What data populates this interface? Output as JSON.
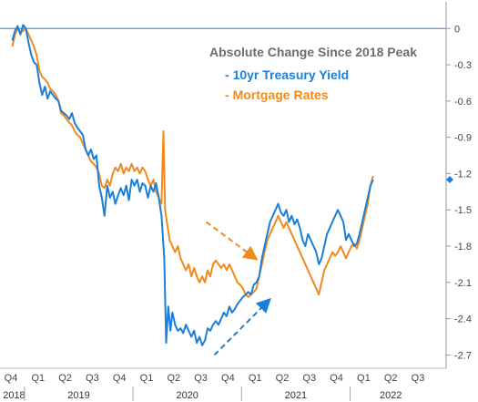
{
  "chart_data": {
    "type": "line",
    "title": "",
    "legend_title": "Absolute Change Since 2018 Peak",
    "legend_placement": "top-right",
    "xlabel": "",
    "ylabel": "",
    "ylim": [
      -2.75,
      0.1
    ],
    "y_ticks": [
      0,
      -0.3,
      -0.6,
      -0.9,
      -1.2,
      -1.5,
      -1.8,
      -2.1,
      -2.4,
      -2.7
    ],
    "y_tick_labels": [
      "0",
      "-0.3",
      "-0.6",
      "-0.9",
      "-1.2",
      "-1.5",
      "-1.8",
      "-2.1",
      "-2.4",
      "-2.7"
    ],
    "x_quarter_labels": [
      "Q4",
      "Q1",
      "Q2",
      "Q3",
      "Q4",
      "Q1",
      "Q2",
      "Q3",
      "Q4",
      "Q1",
      "Q2",
      "Q3",
      "Q4",
      "Q1",
      "Q2",
      "Q3"
    ],
    "x_quarter_index": [
      0,
      1,
      2,
      3,
      4,
      5,
      6,
      7,
      8,
      9,
      10,
      11,
      12,
      13,
      14,
      15
    ],
    "x_years": [
      {
        "label": "2018",
        "from": 0,
        "to": 1
      },
      {
        "label": "2019",
        "from": 1,
        "to": 5
      },
      {
        "label": "2020",
        "from": 5,
        "to": 9
      },
      {
        "label": "2021",
        "from": 9,
        "to": 13
      },
      {
        "label": "2022",
        "from": 13,
        "to": 16
      }
    ],
    "x_range": [
      0,
      15.7
    ],
    "zero_line": 0,
    "series": [
      {
        "name": "10yr Treasury Yield",
        "color": "#1a7fd9",
        "points": [
          [
            0.05,
            -0.1
          ],
          [
            0.15,
            -0.02
          ],
          [
            0.25,
            0.02
          ],
          [
            0.35,
            -0.05
          ],
          [
            0.45,
            0.03
          ],
          [
            0.55,
            0.0
          ],
          [
            0.65,
            -0.12
          ],
          [
            0.75,
            -0.22
          ],
          [
            0.85,
            -0.28
          ],
          [
            0.95,
            -0.3
          ],
          [
            1.05,
            -0.45
          ],
          [
            1.15,
            -0.55
          ],
          [
            1.25,
            -0.48
          ],
          [
            1.35,
            -0.58
          ],
          [
            1.45,
            -0.52
          ],
          [
            1.55,
            -0.55
          ],
          [
            1.65,
            -0.58
          ],
          [
            1.75,
            -0.6
          ],
          [
            1.85,
            -0.68
          ],
          [
            1.95,
            -0.7
          ],
          [
            2.05,
            -0.72
          ],
          [
            2.15,
            -0.75
          ],
          [
            2.25,
            -0.7
          ],
          [
            2.35,
            -0.78
          ],
          [
            2.45,
            -0.82
          ],
          [
            2.55,
            -0.85
          ],
          [
            2.65,
            -0.88
          ],
          [
            2.75,
            -1.0
          ],
          [
            2.85,
            -1.05
          ],
          [
            2.95,
            -1.0
          ],
          [
            3.05,
            -1.08
          ],
          [
            3.15,
            -1.05
          ],
          [
            3.25,
            -1.3
          ],
          [
            3.35,
            -1.4
          ],
          [
            3.45,
            -1.55
          ],
          [
            3.55,
            -1.3
          ],
          [
            3.65,
            -1.4
          ],
          [
            3.75,
            -1.35
          ],
          [
            3.85,
            -1.45
          ],
          [
            3.95,
            -1.38
          ],
          [
            4.05,
            -1.32
          ],
          [
            4.15,
            -1.38
          ],
          [
            4.25,
            -1.3
          ],
          [
            4.35,
            -1.42
          ],
          [
            4.45,
            -1.25
          ],
          [
            4.55,
            -1.3
          ],
          [
            4.65,
            -1.25
          ],
          [
            4.75,
            -1.35
          ],
          [
            4.85,
            -1.28
          ],
          [
            4.95,
            -1.3
          ],
          [
            5.05,
            -1.4
          ],
          [
            5.15,
            -1.3
          ],
          [
            5.25,
            -1.35
          ],
          [
            5.35,
            -1.28
          ],
          [
            5.45,
            -1.4
          ],
          [
            5.55,
            -1.55
          ],
          [
            5.65,
            -1.9
          ],
          [
            5.72,
            -2.6
          ],
          [
            5.8,
            -2.3
          ],
          [
            5.88,
            -2.5
          ],
          [
            5.95,
            -2.35
          ],
          [
            6.05,
            -2.45
          ],
          [
            6.15,
            -2.5
          ],
          [
            6.25,
            -2.48
          ],
          [
            6.35,
            -2.52
          ],
          [
            6.45,
            -2.45
          ],
          [
            6.55,
            -2.5
          ],
          [
            6.65,
            -2.55
          ],
          [
            6.75,
            -2.5
          ],
          [
            6.85,
            -2.6
          ],
          [
            6.95,
            -2.55
          ],
          [
            7.05,
            -2.62
          ],
          [
            7.15,
            -2.58
          ],
          [
            7.25,
            -2.48
          ],
          [
            7.35,
            -2.5
          ],
          [
            7.45,
            -2.45
          ],
          [
            7.55,
            -2.42
          ],
          [
            7.65,
            -2.45
          ],
          [
            7.75,
            -2.4
          ],
          [
            7.85,
            -2.35
          ],
          [
            7.95,
            -2.38
          ],
          [
            8.05,
            -2.3
          ],
          [
            8.15,
            -2.35
          ],
          [
            8.25,
            -2.32
          ],
          [
            8.35,
            -2.28
          ],
          [
            8.45,
            -2.25
          ],
          [
            8.55,
            -2.22
          ],
          [
            8.65,
            -2.2
          ],
          [
            8.75,
            -2.18
          ],
          [
            8.85,
            -2.2
          ],
          [
            8.95,
            -2.12
          ],
          [
            9.05,
            -2.1
          ],
          [
            9.15,
            -2.05
          ],
          [
            9.25,
            -1.9
          ],
          [
            9.35,
            -1.8
          ],
          [
            9.45,
            -1.7
          ],
          [
            9.55,
            -1.6
          ],
          [
            9.65,
            -1.55
          ],
          [
            9.75,
            -1.5
          ],
          [
            9.85,
            -1.45
          ],
          [
            9.95,
            -1.52
          ],
          [
            10.05,
            -1.55
          ],
          [
            10.15,
            -1.5
          ],
          [
            10.25,
            -1.6
          ],
          [
            10.35,
            -1.55
          ],
          [
            10.45,
            -1.62
          ],
          [
            10.55,
            -1.58
          ],
          [
            10.65,
            -1.65
          ],
          [
            10.75,
            -1.75
          ],
          [
            10.85,
            -1.8
          ],
          [
            10.95,
            -1.7
          ],
          [
            11.05,
            -1.75
          ],
          [
            11.15,
            -1.8
          ],
          [
            11.25,
            -1.85
          ],
          [
            11.35,
            -1.95
          ],
          [
            11.45,
            -1.9
          ],
          [
            11.55,
            -1.8
          ],
          [
            11.65,
            -1.7
          ],
          [
            11.75,
            -1.65
          ],
          [
            11.85,
            -1.6
          ],
          [
            11.95,
            -1.55
          ],
          [
            12.05,
            -1.5
          ],
          [
            12.15,
            -1.55
          ],
          [
            12.25,
            -1.6
          ],
          [
            12.35,
            -1.75
          ],
          [
            12.45,
            -1.7
          ],
          [
            12.55,
            -1.75
          ],
          [
            12.65,
            -1.8
          ],
          [
            12.75,
            -1.78
          ],
          [
            12.85,
            -1.7
          ],
          [
            12.95,
            -1.6
          ],
          [
            13.05,
            -1.5
          ],
          [
            13.15,
            -1.4
          ],
          [
            13.25,
            -1.3
          ],
          [
            13.35,
            -1.25
          ]
        ]
      },
      {
        "name": "Mortgage Rates",
        "color": "#f08a1d",
        "points": [
          [
            0.05,
            -0.15
          ],
          [
            0.15,
            -0.05
          ],
          [
            0.25,
            0.0
          ],
          [
            0.35,
            -0.03
          ],
          [
            0.45,
            -0.02
          ],
          [
            0.55,
            0.0
          ],
          [
            0.65,
            -0.05
          ],
          [
            0.75,
            -0.1
          ],
          [
            0.85,
            -0.15
          ],
          [
            0.95,
            -0.22
          ],
          [
            1.05,
            -0.35
          ],
          [
            1.15,
            -0.4
          ],
          [
            1.25,
            -0.42
          ],
          [
            1.35,
            -0.45
          ],
          [
            1.45,
            -0.5
          ],
          [
            1.55,
            -0.52
          ],
          [
            1.65,
            -0.55
          ],
          [
            1.75,
            -0.6
          ],
          [
            1.85,
            -0.7
          ],
          [
            1.95,
            -0.72
          ],
          [
            2.05,
            -0.75
          ],
          [
            2.15,
            -0.78
          ],
          [
            2.25,
            -0.8
          ],
          [
            2.35,
            -0.85
          ],
          [
            2.45,
            -0.88
          ],
          [
            2.55,
            -0.9
          ],
          [
            2.65,
            -0.95
          ],
          [
            2.75,
            -1.0
          ],
          [
            2.85,
            -1.05
          ],
          [
            2.95,
            -1.1
          ],
          [
            3.05,
            -1.12
          ],
          [
            3.15,
            -1.15
          ],
          [
            3.25,
            -1.2
          ],
          [
            3.35,
            -1.3
          ],
          [
            3.45,
            -1.32
          ],
          [
            3.55,
            -1.25
          ],
          [
            3.65,
            -1.3
          ],
          [
            3.75,
            -1.2
          ],
          [
            3.85,
            -1.15
          ],
          [
            3.95,
            -1.18
          ],
          [
            4.05,
            -1.12
          ],
          [
            4.15,
            -1.2
          ],
          [
            4.25,
            -1.15
          ],
          [
            4.35,
            -1.18
          ],
          [
            4.45,
            -1.12
          ],
          [
            4.55,
            -1.18
          ],
          [
            4.65,
            -1.15
          ],
          [
            4.75,
            -1.2
          ],
          [
            4.85,
            -1.15
          ],
          [
            4.95,
            -1.18
          ],
          [
            5.05,
            -1.25
          ],
          [
            5.15,
            -1.3
          ],
          [
            5.25,
            -1.25
          ],
          [
            5.35,
            -1.35
          ],
          [
            5.45,
            -1.4
          ],
          [
            5.55,
            -1.45
          ],
          [
            5.62,
            -0.85
          ],
          [
            5.68,
            -1.5
          ],
          [
            5.75,
            -1.6
          ],
          [
            5.85,
            -1.75
          ],
          [
            5.95,
            -1.8
          ],
          [
            6.05,
            -1.85
          ],
          [
            6.15,
            -1.8
          ],
          [
            6.25,
            -1.9
          ],
          [
            6.35,
            -1.95
          ],
          [
            6.45,
            -2.0
          ],
          [
            6.55,
            -1.95
          ],
          [
            6.65,
            -2.05
          ],
          [
            6.75,
            -1.98
          ],
          [
            6.85,
            -2.05
          ],
          [
            6.95,
            -2.1
          ],
          [
            7.05,
            -2.05
          ],
          [
            7.15,
            -2.1
          ],
          [
            7.25,
            -2.0
          ],
          [
            7.35,
            -2.05
          ],
          [
            7.45,
            -1.95
          ],
          [
            7.55,
            -1.92
          ],
          [
            7.65,
            -1.95
          ],
          [
            7.75,
            -1.98
          ],
          [
            7.85,
            -1.95
          ],
          [
            7.95,
            -2.0
          ],
          [
            8.05,
            -1.95
          ],
          [
            8.15,
            -2.0
          ],
          [
            8.25,
            -2.05
          ],
          [
            8.35,
            -2.1
          ],
          [
            8.45,
            -2.12
          ],
          [
            8.55,
            -2.15
          ],
          [
            8.65,
            -2.2
          ],
          [
            8.75,
            -2.22
          ],
          [
            8.85,
            -2.2
          ],
          [
            8.95,
            -2.18
          ],
          [
            9.05,
            -2.15
          ],
          [
            9.15,
            -2.05
          ],
          [
            9.25,
            -1.95
          ],
          [
            9.35,
            -1.85
          ],
          [
            9.45,
            -1.75
          ],
          [
            9.55,
            -1.7
          ],
          [
            9.65,
            -1.65
          ],
          [
            9.75,
            -1.6
          ],
          [
            9.85,
            -1.55
          ],
          [
            9.95,
            -1.6
          ],
          [
            10.05,
            -1.65
          ],
          [
            10.15,
            -1.6
          ],
          [
            10.25,
            -1.65
          ],
          [
            10.35,
            -1.7
          ],
          [
            10.45,
            -1.75
          ],
          [
            10.55,
            -1.8
          ],
          [
            10.65,
            -1.85
          ],
          [
            10.75,
            -1.9
          ],
          [
            10.85,
            -1.95
          ],
          [
            10.95,
            -2.0
          ],
          [
            11.05,
            -2.05
          ],
          [
            11.15,
            -2.1
          ],
          [
            11.25,
            -2.15
          ],
          [
            11.35,
            -2.2
          ],
          [
            11.45,
            -2.1
          ],
          [
            11.55,
            -2.0
          ],
          [
            11.65,
            -1.95
          ],
          [
            11.75,
            -1.9
          ],
          [
            11.85,
            -1.85
          ],
          [
            11.95,
            -1.88
          ],
          [
            12.05,
            -1.85
          ],
          [
            12.15,
            -1.8
          ],
          [
            12.25,
            -1.85
          ],
          [
            12.35,
            -1.9
          ],
          [
            12.45,
            -1.85
          ],
          [
            12.55,
            -1.8
          ],
          [
            12.65,
            -1.78
          ],
          [
            12.75,
            -1.82
          ],
          [
            12.85,
            -1.75
          ],
          [
            12.95,
            -1.65
          ],
          [
            13.05,
            -1.55
          ],
          [
            13.15,
            -1.45
          ],
          [
            13.25,
            -1.3
          ],
          [
            13.35,
            -1.22
          ]
        ]
      }
    ],
    "annotations": [
      {
        "type": "arrow",
        "style": "dashed",
        "color": "#f08a1d",
        "from": [
          7.2,
          -1.6
        ],
        "to": [
          9.0,
          -1.9
        ]
      },
      {
        "type": "arrow",
        "style": "dashed",
        "color": "#1a7fd9",
        "from": [
          7.5,
          -2.7
        ],
        "to": [
          9.5,
          -2.25
        ]
      }
    ],
    "end_marker": {
      "x": 15.95,
      "y": -1.25,
      "color": "#1a7fd9"
    }
  }
}
